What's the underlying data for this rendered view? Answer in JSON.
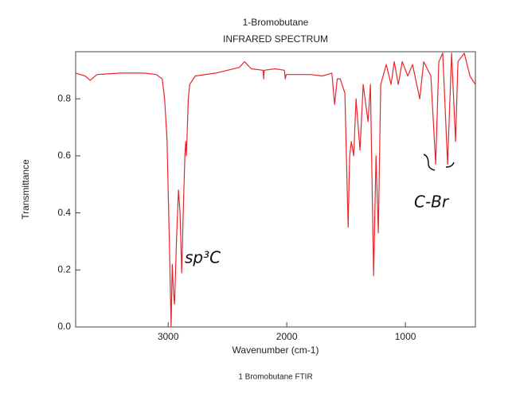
{
  "chart_data": {
    "type": "line",
    "title": "1-Bromobutane",
    "subtitle": "INFRARED SPECTRUM",
    "x_label": "Wavenumber (cm-1)",
    "y_label": "Transmittance",
    "caption": "1 Bromobutane FTIR",
    "annotations": [
      "sp³C",
      "C-Br"
    ],
    "xlim": [
      3780,
      410
    ],
    "xticks": [
      3000,
      2000,
      1000
    ],
    "ylim": [
      0,
      0.965
    ],
    "yticks": [
      {
        "value": 0,
        "label": "0.0"
      },
      0.2,
      0.4,
      0.6,
      0.8
    ],
    "series": [
      {
        "name": "1-Bromobutane",
        "color": "#e8262a",
        "x": [
          3780,
          3700,
          3658,
          3600,
          3400,
          3200,
          3100,
          3050,
          3030,
          3010,
          2990,
          2975,
          2966,
          2955,
          2946,
          2930,
          2913,
          2900,
          2886,
          2870,
          2859,
          2852,
          2846,
          2830,
          2819,
          2772,
          2600,
          2500,
          2400,
          2356,
          2300,
          2200,
          2195,
          2190,
          2100,
          2020,
          2013,
          2005,
          2000,
          1800,
          1700,
          1620,
          1597,
          1575,
          1550,
          1510,
          1483,
          1470,
          1456,
          1436,
          1416,
          1383,
          1356,
          1315,
          1295,
          1268,
          1248,
          1228,
          1208,
          1161,
          1121,
          1094,
          1060,
          1027,
          980,
          940,
          879,
          846,
          785,
          745,
          718,
          685,
          644,
          611,
          577,
          557,
          503,
          456,
          410
        ],
        "values": [
          0.89,
          0.88,
          0.865,
          0.885,
          0.89,
          0.89,
          0.885,
          0.87,
          0.8,
          0.66,
          0.3,
          0.0,
          0.22,
          0.12,
          0.08,
          0.3,
          0.48,
          0.4,
          0.19,
          0.45,
          0.6,
          0.65,
          0.6,
          0.8,
          0.85,
          0.88,
          0.89,
          0.9,
          0.91,
          0.93,
          0.905,
          0.9,
          0.87,
          0.9,
          0.905,
          0.9,
          0.87,
          0.885,
          0.885,
          0.885,
          0.88,
          0.89,
          0.78,
          0.87,
          0.87,
          0.82,
          0.35,
          0.6,
          0.65,
          0.6,
          0.8,
          0.62,
          0.85,
          0.72,
          0.85,
          0.18,
          0.6,
          0.33,
          0.85,
          0.92,
          0.85,
          0.93,
          0.85,
          0.93,
          0.88,
          0.92,
          0.8,
          0.93,
          0.88,
          0.57,
          0.93,
          0.96,
          0.57,
          0.96,
          0.65,
          0.93,
          0.96,
          0.88,
          0.85
        ]
      }
    ]
  }
}
